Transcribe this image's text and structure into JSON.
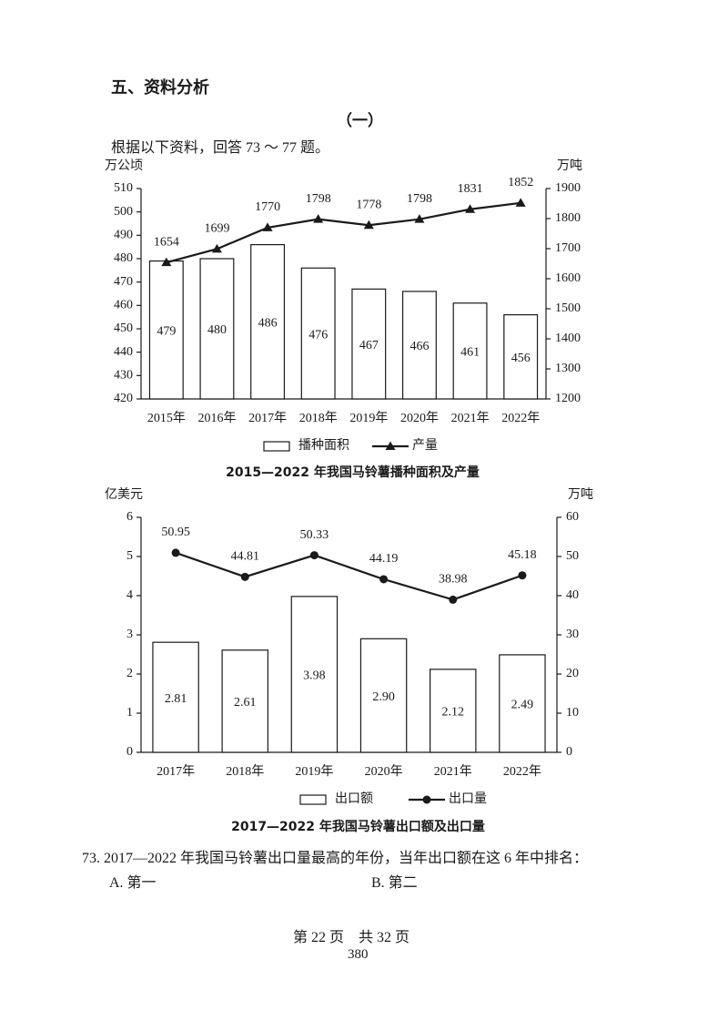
{
  "section_title": "五、资料分析",
  "part_title": "（一）",
  "intro": "根据以下资料，回答 73 ～ 77 题。",
  "chart_data": [
    {
      "type": "bar",
      "title": "2015—2022 年我国马铃薯播种面积及产量",
      "y_label": "万公顷",
      "y2_label": "万吨",
      "categories": [
        "2015年",
        "2016年",
        "2017年",
        "2018年",
        "2019年",
        "2020年",
        "2021年",
        "2022年"
      ],
      "series": [
        {
          "name": "播种面积",
          "type": "bar",
          "color": "#ffffff",
          "values": [
            479,
            480,
            486,
            476,
            467,
            466,
            461,
            456
          ]
        },
        {
          "name": "产量",
          "type": "line",
          "marker": "triangle",
          "axis": "y2",
          "color": "#1a1a1a",
          "values": [
            1654,
            1699,
            1770,
            1798,
            1778,
            1798,
            1831,
            1852
          ]
        }
      ],
      "ylim": [
        420,
        510
      ],
      "yticks": [
        420,
        430,
        440,
        450,
        460,
        470,
        480,
        490,
        500,
        510
      ],
      "y2lim": [
        1200,
        1900
      ],
      "y2ticks": [
        1200,
        1300,
        1400,
        1500,
        1600,
        1700,
        1800,
        1900
      ]
    },
    {
      "type": "bar",
      "title": "2017—2022 年我国马铃薯出口额及出口量",
      "y_label": "亿美元",
      "y2_label": "万吨",
      "categories": [
        "2017年",
        "2018年",
        "2019年",
        "2020年",
        "2021年",
        "2022年"
      ],
      "series": [
        {
          "name": "出口额",
          "type": "bar",
          "color": "#ffffff",
          "values": [
            2.81,
            2.61,
            3.98,
            2.9,
            2.12,
            2.49
          ],
          "value_labels": [
            "2.81",
            "2.61",
            "3.98",
            "2.90",
            "2.12",
            "2.49"
          ]
        },
        {
          "name": "出口量",
          "type": "line",
          "marker": "circle",
          "axis": "y2",
          "color": "#1a1a1a",
          "values": [
            50.95,
            44.81,
            50.33,
            44.19,
            38.98,
            45.18
          ]
        }
      ],
      "ylim": [
        0,
        6
      ],
      "yticks": [
        0,
        1,
        2,
        3,
        4,
        5,
        6
      ],
      "y2lim": [
        0,
        60
      ],
      "y2ticks": [
        0,
        10,
        20,
        30,
        40,
        50,
        60
      ]
    }
  ],
  "question": {
    "stem": "73. 2017—2022 年我国马铃薯出口量最高的年份，当年出口额在这 6 年中排名：",
    "options": [
      "A. 第一",
      "B. 第二"
    ]
  },
  "footer": {
    "page": "第 22 页　共 32 页",
    "number": "380"
  }
}
